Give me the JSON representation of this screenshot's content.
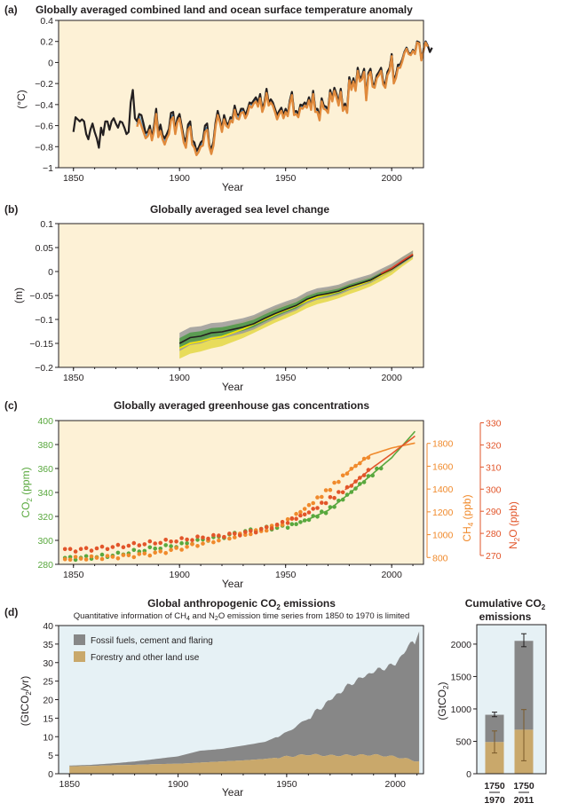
{
  "colors": {
    "panel_bg": "#fdf1d6",
    "panel_d_bg": "#e6f1f5",
    "hadcrut": "#231f20",
    "mlost": "#4f9bd4",
    "giss": "#e08a3c",
    "sea_band_gray": "#9a9a9a",
    "sea_band_green": "#4e9a47",
    "sea_band_yellow": "#e5d94e",
    "sea_band_olive": "#c2b64a",
    "sea_line_black": "#231f20",
    "sea_line_yellow": "#f2e600",
    "sea_line_red": "#e23d24",
    "co2": "#59a83e",
    "ch4": "#f08a2c",
    "n2o": "#e2552a",
    "fossil": "#878787",
    "forestry": "#c9a86b"
  },
  "panel_a": {
    "label": "(a)",
    "title": "Globally averaged combined land and ocean surface temperature anomaly",
    "ylabel": "(°C)",
    "xlabel": "Year",
    "xticks": [
      "1850",
      "1900",
      "1950",
      "2000"
    ],
    "yticks": [
      "0.4",
      "0.2",
      "0",
      "−0.2",
      "−0.4",
      "−0.6",
      "−0.8",
      "−1"
    ]
  },
  "panel_b": {
    "label": "(b)",
    "title": "Globally averaged sea level change",
    "ylabel": "(m)",
    "xlabel": "Year",
    "xticks": [
      "1850",
      "1900",
      "1950",
      "2000"
    ],
    "yticks": [
      "0.1",
      "0.05",
      "0",
      "−0.05",
      "−0.1",
      "−0.15",
      "−0.2"
    ]
  },
  "panel_c": {
    "label": "(c)",
    "title": "Globally averaged greenhouse gas concentrations",
    "ylabel_co2": "CO",
    "ylabel_co2_sub": "2",
    "ylabel_co2_unit": " (ppm)",
    "ylabel_ch4": "CH",
    "ylabel_ch4_sub": "4",
    "ylabel_ch4_unit": " (ppb)",
    "ylabel_n2o": "N",
    "ylabel_n2o_sub": "2",
    "ylabel_n2o_mid": "O",
    "ylabel_n2o_unit": " (ppb)",
    "xlabel": "Year",
    "xticks": [
      "1850",
      "1900",
      "1950",
      "2000"
    ],
    "yticks_co2": [
      "400",
      "380",
      "360",
      "340",
      "320",
      "300",
      "280"
    ],
    "yticks_ch4": [
      "1800",
      "1600",
      "1400",
      "1200",
      "1000",
      "800"
    ],
    "yticks_n2o": [
      "330",
      "320",
      "310",
      "300",
      "290",
      "280",
      "270"
    ]
  },
  "panel_d": {
    "label": "(d)",
    "title": "Global anthropogenic CO",
    "title_sub": "2",
    "title_end": " emissions",
    "subtitle_a": "Quantitative information of CH",
    "subtitle_sub1": "4",
    "subtitle_b": " and N",
    "subtitle_sub2": "2",
    "subtitle_c": "O emission time series from 1850 to 1970 is limited",
    "ylabel": "(GtCO",
    "ylabel_sub": "2",
    "ylabel_end": "/yr)",
    "xlabel": "Year",
    "xticks": [
      "1850",
      "1900",
      "1950",
      "2000"
    ],
    "yticks": [
      "40",
      "35",
      "30",
      "25",
      "20",
      "15",
      "10",
      "5",
      "0"
    ],
    "legend_fossil": "Fossil fuels, cement and flaring",
    "legend_forestry": "Forestry and other land use"
  },
  "panel_e": {
    "title_a": "Cumulative CO",
    "title_sub": "2",
    "title_b": "emissions",
    "ylabel": "(GtCO",
    "ylabel_sub": "2",
    "ylabel_end": ")",
    "yticks": [
      "2000",
      "1500",
      "1000",
      "500",
      "0"
    ],
    "bar1_top": "1750",
    "bar1_bottom": "1970",
    "bar2_top": "1750",
    "bar2_bottom": "2011"
  },
  "chart_data": [
    {
      "type": "line",
      "panel": "a",
      "xlim": [
        1843,
        2015
      ],
      "ylim": [
        -1,
        0.4
      ],
      "series": [
        {
          "key": "hadcrut",
          "start": 1850,
          "values": [
            -0.66,
            -0.52,
            -0.54,
            -0.56,
            -0.54,
            -0.56,
            -0.68,
            -0.73,
            -0.64,
            -0.58,
            -0.66,
            -0.72,
            -0.81,
            -0.62,
            -0.69,
            -0.56,
            -0.56,
            -0.64,
            -0.56,
            -0.53,
            -0.58,
            -0.62,
            -0.56,
            -0.57,
            -0.62,
            -0.68,
            -0.66,
            -0.38,
            -0.26,
            -0.53,
            -0.56,
            -0.49,
            -0.5,
            -0.58,
            -0.67,
            -0.66,
            -0.6,
            -0.72,
            -0.6,
            -0.44,
            -0.67,
            -0.59,
            -0.69,
            -0.72,
            -0.68,
            -0.63,
            -0.48,
            -0.47,
            -0.64,
            -0.53,
            -0.49,
            -0.6,
            -0.71,
            -0.75,
            -0.59,
            -0.56,
            -0.74,
            -0.76,
            -0.84,
            -0.81,
            -0.76,
            -0.74,
            -0.6,
            -0.58,
            -0.78,
            -0.83,
            -0.75,
            -0.57,
            -0.46,
            -0.54,
            -0.63,
            -0.5,
            -0.57,
            -0.59,
            -0.52,
            -0.53,
            -0.41,
            -0.49,
            -0.5,
            -0.44,
            -0.44,
            -0.5,
            -0.45,
            -0.38,
            -0.39,
            -0.36,
            -0.33,
            -0.38,
            -0.3,
            -0.44,
            -0.38,
            -0.25,
            -0.38,
            -0.35,
            -0.38,
            -0.44,
            -0.5,
            -0.46,
            -0.43,
            -0.5,
            -0.44,
            -0.49,
            -0.36,
            -0.28,
            -0.47,
            -0.46,
            -0.49,
            -0.4,
            -0.41,
            -0.38,
            -0.4,
            -0.33,
            -0.42,
            -0.27,
            -0.44,
            -0.44,
            -0.52,
            -0.34,
            -0.41,
            -0.42,
            -0.45,
            -0.26,
            -0.34,
            -0.24,
            -0.3,
            -0.38,
            -0.25,
            -0.43,
            -0.39,
            -0.45,
            -0.14,
            -0.23,
            -0.15,
            -0.24,
            -0.05,
            -0.15,
            -0.13,
            -0.06,
            -0.33,
            -0.1,
            -0.06,
            -0.2,
            -0.21,
            -0.12,
            -0.09,
            -0.05,
            -0.18,
            -0.21,
            -0.09,
            -0.05,
            0.08,
            -0.17,
            -0.12,
            -0.02,
            -0.02,
            0.03,
            0.1,
            0.14,
            0.09,
            0.08,
            0.12,
            0.09,
            0.2,
            0.19,
            0.03,
            0.12,
            0.2,
            0.16,
            0.1,
            0.14
          ]
        },
        {
          "key": "mlost",
          "start": 1880,
          "values": [
            -0.59,
            -0.52,
            -0.58,
            -0.64,
            -0.7,
            -0.68,
            -0.62,
            -0.72,
            -0.63,
            -0.47,
            -0.69,
            -0.63,
            -0.71,
            -0.76,
            -0.7,
            -0.66,
            -0.53,
            -0.5,
            -0.66,
            -0.55,
            -0.51,
            -0.62,
            -0.74,
            -0.79,
            -0.62,
            -0.59,
            -0.76,
            -0.79,
            -0.86,
            -0.83,
            -0.78,
            -0.77,
            -0.64,
            -0.62,
            -0.78,
            -0.85,
            -0.77,
            -0.59,
            -0.48,
            -0.55,
            -0.64,
            -0.52,
            -0.58,
            -0.6,
            -0.53,
            -0.55,
            -0.43,
            -0.51,
            -0.52,
            -0.46,
            -0.45,
            -0.51,
            -0.47,
            -0.39,
            -0.41,
            -0.37,
            -0.35,
            -0.4,
            -0.32,
            -0.45,
            -0.39,
            -0.27,
            -0.39,
            -0.36,
            -0.39,
            -0.45,
            -0.52,
            -0.47,
            -0.44,
            -0.51,
            -0.45,
            -0.49,
            -0.37,
            -0.29,
            -0.48,
            -0.47,
            -0.5,
            -0.41,
            -0.42,
            -0.39,
            -0.41,
            -0.34,
            -0.43,
            -0.28,
            -0.45,
            -0.45,
            -0.53,
            -0.35,
            -0.42,
            -0.43,
            -0.46,
            -0.27,
            -0.35,
            -0.25,
            -0.31,
            -0.39,
            -0.26,
            -0.44,
            -0.4,
            -0.46,
            -0.15,
            -0.24,
            -0.16,
            -0.25,
            -0.06,
            -0.16,
            -0.14,
            -0.07,
            -0.34,
            -0.11,
            -0.07,
            -0.21,
            -0.22,
            -0.13,
            -0.1,
            -0.06,
            -0.19,
            -0.22,
            -0.1,
            -0.06,
            0.07,
            -0.18,
            -0.13,
            -0.03,
            -0.03,
            0.02,
            0.1,
            0.14,
            0.09,
            0.08,
            0.12,
            0.09,
            0.2,
            0.19,
            0.03,
            0.12,
            0.2,
            0.16
          ]
        },
        {
          "key": "giss",
          "start": 1880,
          "values": [
            -0.61,
            -0.54,
            -0.6,
            -0.66,
            -0.72,
            -0.7,
            -0.64,
            -0.74,
            -0.65,
            -0.49,
            -0.71,
            -0.65,
            -0.73,
            -0.78,
            -0.72,
            -0.68,
            -0.55,
            -0.52,
            -0.68,
            -0.57,
            -0.53,
            -0.64,
            -0.76,
            -0.81,
            -0.64,
            -0.61,
            -0.78,
            -0.81,
            -0.88,
            -0.85,
            -0.8,
            -0.79,
            -0.66,
            -0.64,
            -0.8,
            -0.87,
            -0.79,
            -0.61,
            -0.5,
            -0.57,
            -0.66,
            -0.54,
            -0.6,
            -0.62,
            -0.55,
            -0.57,
            -0.45,
            -0.53,
            -0.54,
            -0.48,
            -0.47,
            -0.53,
            -0.49,
            -0.41,
            -0.43,
            -0.39,
            -0.37,
            -0.42,
            -0.34,
            -0.47,
            -0.41,
            -0.29,
            -0.41,
            -0.38,
            -0.41,
            -0.47,
            -0.54,
            -0.49,
            -0.46,
            -0.53,
            -0.47,
            -0.51,
            -0.39,
            -0.31,
            -0.5,
            -0.49,
            -0.52,
            -0.43,
            -0.44,
            -0.41,
            -0.43,
            -0.36,
            -0.45,
            -0.3,
            -0.47,
            -0.47,
            -0.55,
            -0.37,
            -0.44,
            -0.45,
            -0.48,
            -0.29,
            -0.37,
            -0.27,
            -0.33,
            -0.41,
            -0.28,
            -0.46,
            -0.42,
            -0.48,
            -0.17,
            -0.26,
            -0.18,
            -0.27,
            -0.08,
            -0.18,
            -0.16,
            -0.09,
            -0.36,
            -0.13,
            -0.09,
            -0.23,
            -0.24,
            -0.15,
            -0.12,
            -0.08,
            -0.21,
            -0.24,
            -0.12,
            -0.08,
            0.06,
            -0.2,
            -0.15,
            -0.05,
            -0.05,
            0.01,
            0.09,
            0.13,
            0.08,
            0.07,
            0.11,
            0.08,
            0.19,
            0.18,
            0.02,
            0.11,
            0.19,
            0.15
          ]
        }
      ]
    },
    {
      "type": "line",
      "panel": "b",
      "xlim": [
        1843,
        2015
      ],
      "ylim": [
        -0.2,
        0.1
      ],
      "x": [
        1900,
        1905,
        1910,
        1915,
        1920,
        1925,
        1930,
        1935,
        1940,
        1945,
        1950,
        1955,
        1960,
        1965,
        1970,
        1975,
        1980,
        1985,
        1990,
        1995,
        2000,
        2005,
        2010
      ],
      "series": [
        {
          "key": "black_mean",
          "values": [
            -0.15,
            -0.138,
            -0.135,
            -0.128,
            -0.126,
            -0.121,
            -0.116,
            -0.109,
            -0.098,
            -0.088,
            -0.079,
            -0.071,
            -0.058,
            -0.05,
            -0.046,
            -0.041,
            -0.032,
            -0.025,
            -0.018,
            -0.006,
            0.005,
            0.02,
            0.034
          ]
        },
        {
          "key": "yellow",
          "values": [
            -0.16,
            -0.15,
            -0.146,
            -0.14,
            -0.136,
            -0.128,
            -0.12,
            -0.11,
            -0.1,
            -0.09,
            -0.081,
            -0.072,
            -0.061,
            -0.053,
            -0.048,
            -0.042,
            -0.034,
            -0.027,
            -0.019,
            -0.008,
            0.004,
            0.021,
            0.036
          ]
        }
      ]
    },
    {
      "type": "scatter",
      "panel": "c",
      "xlim": [
        1843,
        2015
      ],
      "co2_ylim": [
        280,
        400
      ],
      "ch4_ylim": [
        740,
        2000
      ],
      "n2o_ylim": [
        266,
        331
      ],
      "series": [
        {
          "key": "co2",
          "axis": "co2",
          "x": [
            1850,
            1860,
            1870,
            1880,
            1890,
            1900,
            1910,
            1920,
            1930,
            1940,
            1950,
            1960,
            1970,
            1980,
            1990,
            2000,
            2011
          ],
          "values": [
            285,
            286,
            288,
            291,
            294,
            296,
            300,
            303,
            307,
            310,
            311,
            317,
            325,
            339,
            354,
            369,
            391
          ]
        },
        {
          "key": "ch4",
          "axis": "ch4",
          "x": [
            1850,
            1860,
            1870,
            1880,
            1890,
            1900,
            1910,
            1920,
            1930,
            1940,
            1950,
            1960,
            1970,
            1980,
            1990,
            2000,
            2011
          ],
          "values": [
            791,
            797,
            805,
            820,
            840,
            878,
            920,
            960,
            1000,
            1040,
            1110,
            1240,
            1390,
            1560,
            1700,
            1760,
            1803
          ]
        },
        {
          "key": "n2o",
          "axis": "n2o",
          "x": [
            1850,
            1860,
            1870,
            1880,
            1890,
            1900,
            1910,
            1920,
            1930,
            1940,
            1950,
            1960,
            1970,
            1980,
            1990,
            2000,
            2011
          ],
          "values": [
            272.5,
            273,
            274,
            275,
            276,
            277,
            278,
            279,
            280,
            282,
            285,
            289,
            295,
            301,
            309,
            316,
            324
          ]
        }
      ]
    },
    {
      "type": "area",
      "panel": "d",
      "xlim": [
        1845,
        2013
      ],
      "ylim": [
        0,
        40
      ],
      "x": [
        1850,
        1860,
        1870,
        1880,
        1890,
        1900,
        1910,
        1920,
        1930,
        1940,
        1950,
        1960,
        1970,
        1980,
        1990,
        2000,
        2011
      ],
      "series": [
        {
          "name": "Forestry and other land use",
          "key": "forestry",
          "values": [
            2.0,
            2.1,
            2.3,
            2.4,
            2.6,
            2.7,
            3.0,
            3.3,
            3.6,
            4.0,
            4.6,
            5.2,
            4.9,
            5.0,
            5.1,
            4.6,
            3.3
          ]
        },
        {
          "name": "Fossil fuels, cement and flaring",
          "key": "fossil",
          "values": [
            0.2,
            0.3,
            0.5,
            0.9,
            1.4,
            2.0,
            3.2,
            3.4,
            4.0,
            4.6,
            6.5,
            9.8,
            15.0,
            19.5,
            22.5,
            25.0,
            34.8
          ]
        }
      ]
    },
    {
      "type": "bar",
      "panel": "e",
      "ylim": [
        0,
        2300
      ],
      "categories": [
        "1750–1970",
        "1750–2011"
      ],
      "series": [
        {
          "name": "Forestry and other land use",
          "key": "forestry",
          "values": [
            490,
            680
          ]
        },
        {
          "name": "Fossil fuels, cement and flaring",
          "key": "fossil",
          "values": [
            420,
            1370
          ]
        }
      ],
      "error_total": [
        [
          880,
          950
        ],
        [
          1960,
          2160
        ]
      ],
      "error_forestry": [
        [
          320,
          660
        ],
        [
          200,
          990
        ]
      ]
    }
  ]
}
